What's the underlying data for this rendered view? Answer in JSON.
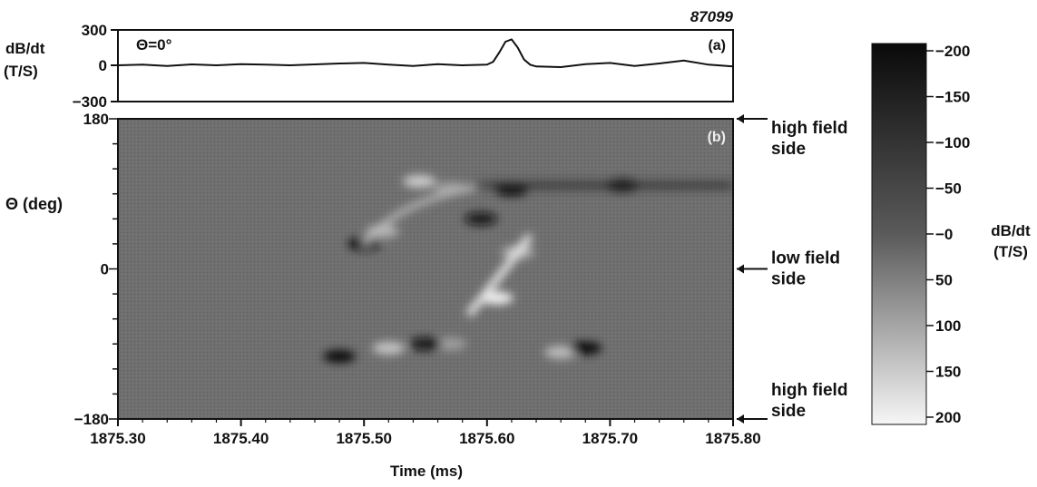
{
  "shot_number": "87099",
  "chart_data": [
    {
      "panel": "(a)",
      "type": "line",
      "annotation": "Θ=0°",
      "ylabel": "dB/dt\n(T/S)",
      "ylim": [
        -300,
        300
      ],
      "yticks": [
        "300",
        "0",
        "−300"
      ],
      "xlim": [
        1875.3,
        1875.8
      ],
      "x": [
        1875.3,
        1875.32,
        1875.34,
        1875.36,
        1875.38,
        1875.4,
        1875.42,
        1875.44,
        1875.46,
        1875.48,
        1875.5,
        1875.52,
        1875.54,
        1875.56,
        1875.58,
        1875.6,
        1875.605,
        1875.61,
        1875.615,
        1875.62,
        1875.625,
        1875.63,
        1875.635,
        1875.64,
        1875.66,
        1875.68,
        1875.7,
        1875.72,
        1875.74,
        1875.76,
        1875.78,
        1875.8
      ],
      "y": [
        0,
        5,
        -5,
        8,
        0,
        10,
        5,
        0,
        8,
        15,
        20,
        5,
        -5,
        10,
        0,
        5,
        30,
        110,
        200,
        220,
        150,
        50,
        5,
        -10,
        -15,
        10,
        20,
        -5,
        15,
        40,
        5,
        -10
      ]
    },
    {
      "panel": "(b)",
      "type": "heatmap",
      "xlabel": "Time (ms)",
      "ylabel": "Θ (deg)",
      "xlim": [
        1875.3,
        1875.8
      ],
      "ylim": [
        -180,
        180
      ],
      "xticks": [
        "1875.30",
        "1875.40",
        "1875.50",
        "1875.60",
        "1875.70",
        "1875.80"
      ],
      "yticks": [
        "180",
        "0",
        "−180"
      ],
      "colorbar": {
        "label": "dB/dt\n(T/S)",
        "range": [
          -200,
          200
        ],
        "ticks": [
          "−200",
          "−150",
          "−100",
          "−50",
          "−0",
          "50",
          "100",
          "150",
          "200"
        ]
      },
      "features": [
        {
          "x": 1875.608,
          "y": -35,
          "value": 200
        },
        {
          "x": 1875.625,
          "y": 20,
          "value": 120
        },
        {
          "x": 1875.515,
          "y": 45,
          "value": 120
        },
        {
          "x": 1875.545,
          "y": 105,
          "value": 150
        },
        {
          "x": 1875.57,
          "y": 97,
          "value": 90
        },
        {
          "x": 1875.52,
          "y": -95,
          "value": 140
        },
        {
          "x": 1875.57,
          "y": -90,
          "value": 90
        },
        {
          "x": 1875.66,
          "y": -100,
          "value": 130
        },
        {
          "x": 1875.71,
          "y": 100,
          "value": -110
        },
        {
          "x": 1875.62,
          "y": 95,
          "value": -140
        },
        {
          "x": 1875.5,
          "y": 30,
          "value": -120
        },
        {
          "x": 1875.595,
          "y": 60,
          "value": -90
        },
        {
          "x": 1875.68,
          "y": -95,
          "value": -130
        },
        {
          "x": 1875.55,
          "y": -90,
          "value": -100
        },
        {
          "x": 1875.48,
          "y": -105,
          "value": -110
        }
      ]
    }
  ],
  "side_labels": [
    {
      "text_line1": "high field",
      "text_line2": "side",
      "theta": 180
    },
    {
      "text_line1": "low field",
      "text_line2": "side",
      "theta": 0
    },
    {
      "text_line1": "high field",
      "text_line2": "side",
      "theta": -180
    }
  ]
}
